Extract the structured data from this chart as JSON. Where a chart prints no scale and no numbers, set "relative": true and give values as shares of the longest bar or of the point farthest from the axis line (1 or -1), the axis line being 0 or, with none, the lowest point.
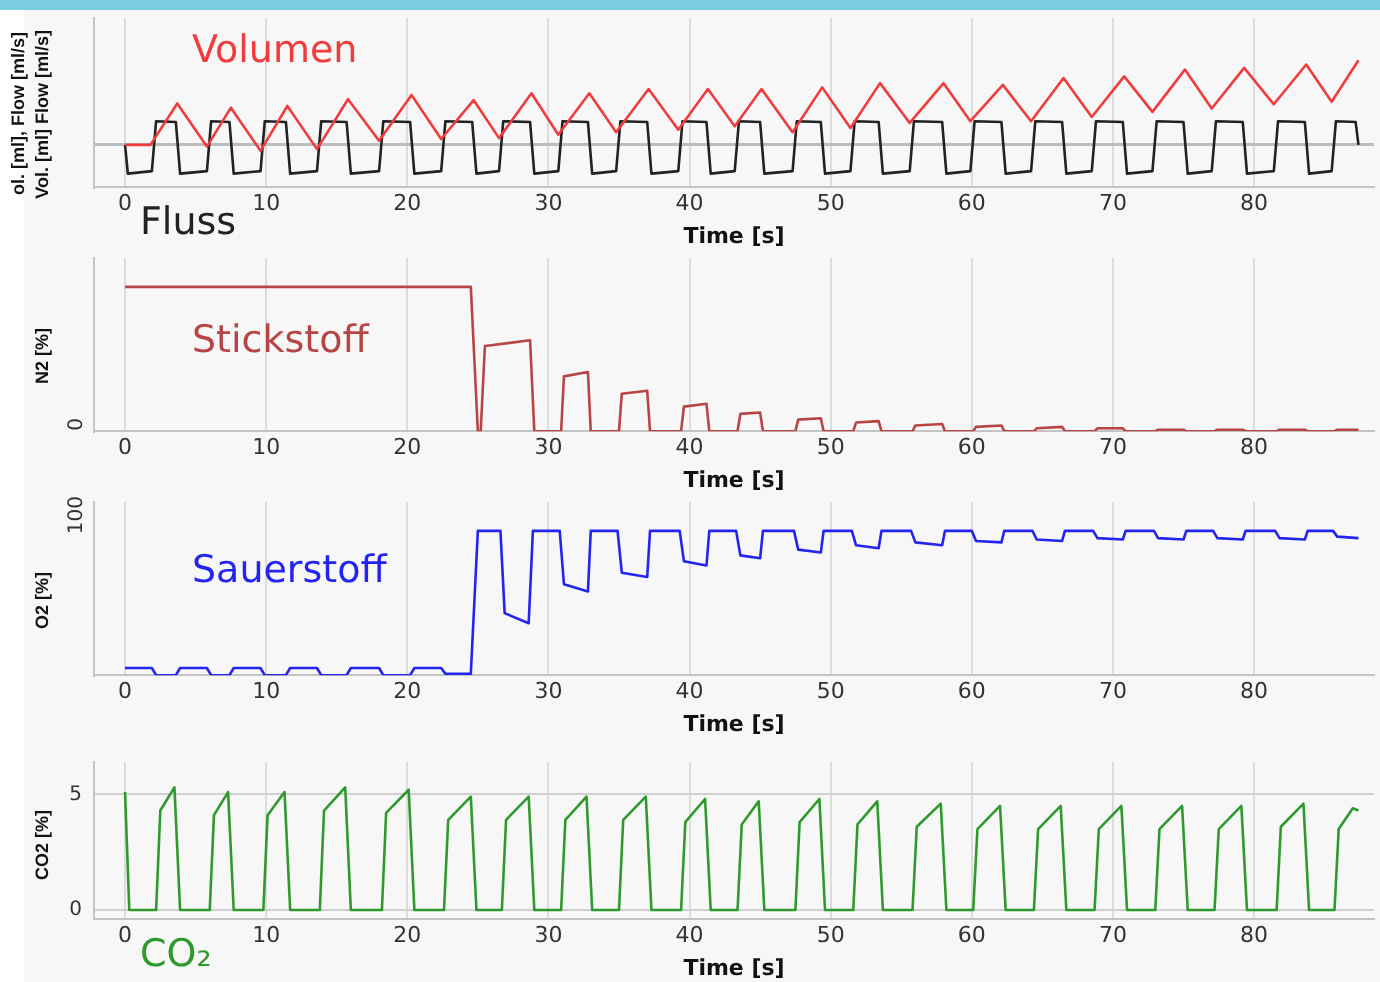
{
  "chart_data": [
    {
      "type": "line",
      "ylabel": "Vol. [ml] Flow [ml/s]",
      "xlabel": "Time [s]",
      "relative": true,
      "grid": true,
      "annotations": [
        "ol. [ml], Flow [ml/s]"
      ],
      "xlim": [
        -2.2,
        88.5
      ],
      "xticks": [
        0,
        10,
        20,
        30,
        40,
        50,
        60,
        70,
        80
      ],
      "series": [
        {
          "name": "Volumen",
          "color": "#f03c3c",
          "x": [
            0,
            1.8,
            3.7,
            5.8,
            7.5,
            9.6,
            11.5,
            13.6,
            15.8,
            18.0,
            20.3,
            22.4,
            24.7,
            26.5,
            28.8,
            30.7,
            32.9,
            34.8,
            37.1,
            39.2,
            41.3,
            43.2,
            45.1,
            47.3,
            49.4,
            51.4,
            53.5,
            55.6,
            58.0,
            59.9,
            62.2,
            64.2,
            66.5,
            68.5,
            70.8,
            72.8,
            75.1,
            77.0,
            79.3,
            81.4,
            83.7,
            85.5,
            87.4
          ],
          "values": [
            0,
            0,
            0.49,
            -0.02,
            0.44,
            -0.07,
            0.46,
            -0.05,
            0.54,
            0.05,
            0.59,
            0.07,
            0.53,
            0.08,
            0.61,
            0.12,
            0.61,
            0.15,
            0.66,
            0.18,
            0.66,
            0.22,
            0.66,
            0.15,
            0.68,
            0.2,
            0.73,
            0.26,
            0.73,
            0.28,
            0.71,
            0.28,
            0.79,
            0.33,
            0.81,
            0.39,
            0.89,
            0.43,
            0.91,
            0.48,
            0.95,
            0.51,
            1.0
          ]
        },
        {
          "name": "Fluss",
          "color": "#222222",
          "x": [
            0,
            0.2,
            1.9,
            2.2,
            3.6,
            3.9,
            5.8,
            6.1,
            7.4,
            7.7,
            9.6,
            9.9,
            11.4,
            11.7,
            13.6,
            13.9,
            15.7,
            16.0,
            18.0,
            18.3,
            20.2,
            20.5,
            22.4,
            22.7,
            24.6,
            24.9,
            26.5,
            26.8,
            28.7,
            29.0,
            30.7,
            31.0,
            32.8,
            33.1,
            34.8,
            35.1,
            37.0,
            37.3,
            39.2,
            39.5,
            41.2,
            41.5,
            43.2,
            43.5,
            45.0,
            45.3,
            47.3,
            47.6,
            49.3,
            49.6,
            51.4,
            51.7,
            53.4,
            53.7,
            55.6,
            55.9,
            57.9,
            58.2,
            59.9,
            60.2,
            62.1,
            62.4,
            64.2,
            64.5,
            66.4,
            66.7,
            68.5,
            68.8,
            70.7,
            71.0,
            72.8,
            73.1,
            75.0,
            75.3,
            77.0,
            77.3,
            79.2,
            79.5,
            81.4,
            81.7,
            83.6,
            83.9,
            85.5,
            85.8,
            87.2,
            87.4
          ],
          "values": [
            0,
            -0.34,
            -0.31,
            0.28,
            0.27,
            -0.34,
            -0.31,
            0.28,
            0.27,
            -0.34,
            -0.31,
            0.28,
            0.27,
            -0.34,
            -0.31,
            0.28,
            0.27,
            -0.34,
            -0.31,
            0.28,
            0.27,
            -0.34,
            -0.31,
            0.28,
            0.27,
            -0.34,
            -0.31,
            0.28,
            0.27,
            -0.34,
            -0.31,
            0.28,
            0.27,
            -0.34,
            -0.31,
            0.28,
            0.27,
            -0.34,
            -0.31,
            0.28,
            0.27,
            -0.34,
            -0.31,
            0.28,
            0.27,
            -0.34,
            -0.31,
            0.28,
            0.27,
            -0.34,
            -0.31,
            0.28,
            0.27,
            -0.34,
            -0.31,
            0.28,
            0.27,
            -0.34,
            -0.31,
            0.28,
            0.27,
            -0.34,
            -0.31,
            0.28,
            0.27,
            -0.34,
            -0.31,
            0.28,
            0.27,
            -0.34,
            -0.31,
            0.28,
            0.27,
            -0.34,
            -0.31,
            0.28,
            0.27,
            -0.34,
            -0.31,
            0.28,
            0.27,
            -0.34,
            -0.31,
            0.28,
            0.27,
            0
          ]
        }
      ]
    },
    {
      "type": "line",
      "ylabel": "N2 [%]",
      "xlabel": "Time [s]",
      "relative": true,
      "grid": true,
      "xlim": [
        -2.2,
        88.5
      ],
      "xticks": [
        0,
        10,
        20,
        30,
        40,
        50,
        60,
        70,
        80
      ],
      "annotations": [
        "0"
      ],
      "series": [
        {
          "name": "Stickstoff",
          "color": "#b84545",
          "x": [
            0,
            24.5,
            25.0,
            25.2,
            25.5,
            28.7,
            29.0,
            30.9,
            31.1,
            32.8,
            33.0,
            35.0,
            35.2,
            37.0,
            37.2,
            39.4,
            39.6,
            41.2,
            41.4,
            43.4,
            43.6,
            45.0,
            45.2,
            47.5,
            47.7,
            49.3,
            49.5,
            51.6,
            51.8,
            53.4,
            53.6,
            55.8,
            56.0,
            57.9,
            58.1,
            60.1,
            60.3,
            62.1,
            62.3,
            64.4,
            64.6,
            66.4,
            66.6,
            68.7,
            68.9,
            70.7,
            70.9,
            73.0,
            73.2,
            75.0,
            75.2,
            77.2,
            77.4,
            79.2,
            79.4,
            81.6,
            81.8,
            83.6,
            83.8,
            85.7,
            85.9,
            87.4
          ],
          "values": [
            1,
            1,
            0,
            0,
            0.59,
            0.63,
            0,
            0,
            0.38,
            0.41,
            0,
            0,
            0.26,
            0.28,
            0,
            0,
            0.17,
            0.19,
            0,
            0,
            0.12,
            0.13,
            0,
            0,
            0.08,
            0.09,
            0,
            0,
            0.06,
            0.07,
            0,
            0,
            0.04,
            0.05,
            0,
            0,
            0.03,
            0.04,
            0,
            0,
            0.02,
            0.03,
            0,
            0,
            0.02,
            0.02,
            0,
            0,
            0.01,
            0.01,
            0,
            0,
            0.01,
            0.01,
            0,
            0,
            0.01,
            0.01,
            0,
            0,
            0.01,
            0.01
          ]
        }
      ]
    },
    {
      "type": "line",
      "ylabel": "O2 [%]",
      "xlabel": "Time [s]",
      "relative": true,
      "grid": true,
      "xlim": [
        -2.2,
        88.5
      ],
      "xticks": [
        0,
        10,
        20,
        30,
        40,
        50,
        60,
        70,
        80
      ],
      "annotations": [
        "100"
      ],
      "series": [
        {
          "name": "Sauerstoff",
          "color": "#2424f0",
          "x": [
            0,
            1.9,
            2.2,
            3.6,
            3.9,
            5.8,
            6.1,
            7.4,
            7.7,
            9.6,
            9.9,
            11.4,
            11.7,
            13.6,
            13.9,
            15.7,
            16.0,
            18.0,
            18.3,
            20.2,
            20.5,
            22.4,
            22.7,
            24.5,
            25.0,
            26.6,
            26.9,
            28.6,
            28.9,
            30.8,
            31.1,
            32.8,
            33.0,
            34.9,
            35.2,
            37.0,
            37.2,
            39.3,
            39.6,
            41.2,
            41.4,
            43.3,
            43.6,
            45.0,
            45.2,
            47.4,
            47.7,
            49.3,
            49.5,
            51.5,
            51.8,
            53.4,
            53.6,
            55.7,
            56.0,
            57.9,
            58.1,
            60.0,
            60.3,
            62.1,
            62.3,
            64.3,
            64.6,
            66.4,
            66.6,
            68.6,
            68.9,
            70.7,
            70.9,
            72.9,
            73.2,
            75.0,
            75.2,
            77.1,
            77.4,
            79.2,
            79.4,
            81.5,
            81.8,
            83.6,
            83.8,
            85.6,
            85.9,
            87.4
          ],
          "values": [
            0.05,
            0.05,
            0,
            0,
            0.05,
            0.05,
            0,
            0,
            0.05,
            0.05,
            0,
            0,
            0.05,
            0.05,
            0,
            0,
            0.05,
            0.05,
            0,
            0,
            0.05,
            0.05,
            0.01,
            0.01,
            1,
            1,
            0.43,
            0.36,
            1,
            1,
            0.63,
            0.58,
            1,
            1,
            0.71,
            0.68,
            1,
            1,
            0.79,
            0.76,
            1,
            1,
            0.83,
            0.81,
            1,
            1,
            0.87,
            0.85,
            1,
            1,
            0.9,
            0.88,
            1,
            1,
            0.92,
            0.9,
            1,
            1,
            0.93,
            0.92,
            1,
            1,
            0.94,
            0.93,
            1,
            1,
            0.95,
            0.94,
            1,
            1,
            0.95,
            0.94,
            1,
            1,
            0.95,
            0.94,
            1,
            1,
            0.95,
            0.94,
            1,
            1,
            0.96,
            0.95
          ]
        }
      ]
    },
    {
      "type": "line",
      "ylabel": "CO2 [%]",
      "xlabel": "Time [s]",
      "grid": true,
      "xlim": [
        -2.2,
        88.5
      ],
      "xticks": [
        0,
        10,
        20,
        30,
        40,
        50,
        60,
        70,
        80
      ],
      "ylim": [
        -0.4,
        6.4
      ],
      "yticks": [
        0,
        5
      ],
      "series": [
        {
          "name": "CO₂",
          "color": "#2e9a2e",
          "x": [
            0,
            0.3,
            2.2,
            2.5,
            3.5,
            3.9,
            6.0,
            6.3,
            7.3,
            7.7,
            9.8,
            10.1,
            11.3,
            11.7,
            13.8,
            14.1,
            15.6,
            16.0,
            18.2,
            18.5,
            20.1,
            20.5,
            22.6,
            22.9,
            24.5,
            24.9,
            26.7,
            27.0,
            28.6,
            29.0,
            30.9,
            31.2,
            32.7,
            33.1,
            35.0,
            35.3,
            36.9,
            37.3,
            39.4,
            39.7,
            41.1,
            41.5,
            43.4,
            43.7,
            44.9,
            45.3,
            47.5,
            47.8,
            49.2,
            49.6,
            51.6,
            51.9,
            53.3,
            53.7,
            55.8,
            56.1,
            57.8,
            58.2,
            60.1,
            60.4,
            62.0,
            62.4,
            64.4,
            64.7,
            66.3,
            66.7,
            68.7,
            69.0,
            70.6,
            71.0,
            73.0,
            73.3,
            74.9,
            75.3,
            77.2,
            77.5,
            79.1,
            79.5,
            81.6,
            81.9,
            83.5,
            83.9,
            85.7,
            86.0,
            87.0,
            87.4
          ],
          "values": [
            5.1,
            0,
            0,
            4.3,
            5.3,
            0,
            0,
            4.1,
            5.1,
            0,
            0,
            4.1,
            5.1,
            0,
            0,
            4.3,
            5.3,
            0,
            0,
            4.2,
            5.2,
            0,
            0,
            3.9,
            4.9,
            0,
            0,
            3.9,
            4.9,
            0,
            0,
            3.9,
            4.9,
            0,
            0,
            3.9,
            4.9,
            0,
            0,
            3.8,
            4.8,
            0,
            0,
            3.7,
            4.7,
            0,
            0,
            3.8,
            4.8,
            0,
            0,
            3.7,
            4.7,
            0,
            0,
            3.6,
            4.6,
            0,
            0,
            3.5,
            4.5,
            0,
            0,
            3.5,
            4.5,
            0,
            0,
            3.5,
            4.5,
            0,
            0,
            3.5,
            4.5,
            0,
            0,
            3.5,
            4.5,
            0,
            0,
            3.6,
            4.6,
            0,
            0,
            3.5,
            4.4,
            4.3
          ]
        }
      ]
    }
  ]
}
